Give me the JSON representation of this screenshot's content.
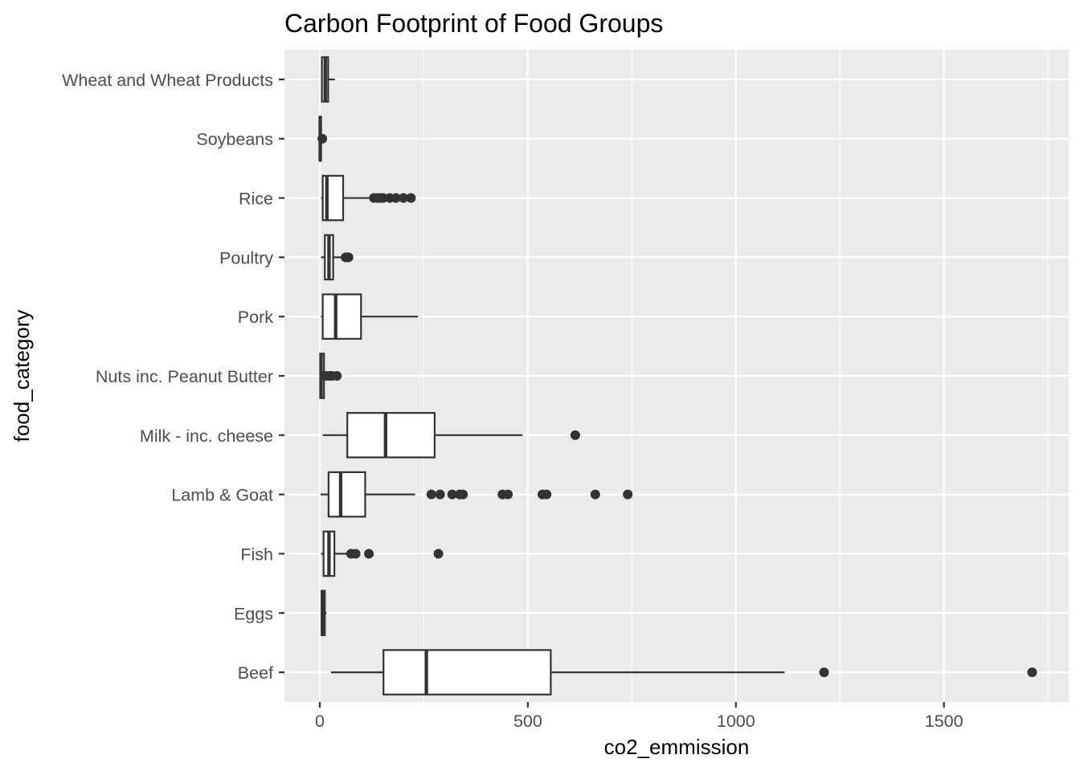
{
  "chart_data": {
    "type": "boxplot",
    "title": "Carbon Footprint of Food Groups",
    "xlabel": "co2_emmission",
    "ylabel": "food_category",
    "orientation": "horizontal",
    "xlim": [
      -85,
      1800
    ],
    "x_ticks": [
      0,
      500,
      1000,
      1500
    ],
    "x_tick_labels": [
      "0",
      "500",
      "1000",
      "1500"
    ],
    "grid": true,
    "categories": [
      "Wheat and Wheat Products",
      "Soybeans",
      "Rice",
      "Poultry",
      "Pork",
      "Nuts inc. Peanut Butter",
      "Milk - inc. cheese",
      "Lamb & Goat",
      "Fish",
      "Eggs",
      "Beef"
    ],
    "boxes": [
      {
        "category": "Wheat and Wheat Products",
        "whisker_low": 3,
        "q1": 5,
        "median": 13,
        "q3": 20,
        "whisker_high": 36,
        "outliers": []
      },
      {
        "category": "Soybeans",
        "whisker_low": 0,
        "q1": 0,
        "median": 1,
        "q3": 2,
        "whisker_high": 3,
        "outliers": [
          6
        ]
      },
      {
        "category": "Rice",
        "whisker_low": 3,
        "q1": 7,
        "median": 17,
        "q3": 56,
        "whisker_high": 119,
        "outliers": [
          130,
          138,
          146,
          152,
          168,
          183,
          201,
          219
        ]
      },
      {
        "category": "Poultry",
        "whisker_low": 3,
        "q1": 12,
        "median": 22,
        "q3": 32,
        "whisker_high": 60,
        "outliers": [
          62,
          66,
          69
        ]
      },
      {
        "category": "Pork",
        "whisker_low": 3,
        "q1": 7,
        "median": 38,
        "q3": 99,
        "whisker_high": 236,
        "outliers": []
      },
      {
        "category": "Nuts inc. Peanut Butter",
        "whisker_low": 0,
        "q1": 1,
        "median": 3,
        "q3": 10,
        "whisker_high": 12,
        "outliers": [
          14,
          24,
          29,
          41
        ]
      },
      {
        "category": "Milk - inc. cheese",
        "whisker_low": 7,
        "q1": 66,
        "median": 158,
        "q3": 276,
        "whisker_high": 487,
        "outliers": [
          614
        ]
      },
      {
        "category": "Lamb & Goat",
        "whisker_low": 2,
        "q1": 21,
        "median": 50,
        "q3": 109,
        "whisker_high": 229,
        "outliers": [
          268,
          289,
          318,
          336,
          344,
          439,
          452,
          535,
          545,
          662,
          740
        ]
      },
      {
        "category": "Fish",
        "whisker_low": 3,
        "q1": 9,
        "median": 22,
        "q3": 35,
        "whisker_high": 65,
        "outliers": [
          75,
          86,
          118,
          285
        ]
      },
      {
        "category": "Eggs",
        "whisker_low": 3,
        "q1": 4,
        "median": 8,
        "q3": 12,
        "whisker_high": 16,
        "outliers": []
      },
      {
        "category": "Beef",
        "whisker_low": 27,
        "q1": 153,
        "median": 256,
        "q3": 555,
        "whisker_high": 1117,
        "outliers": [
          1212,
          1712
        ]
      }
    ],
    "colors": {
      "panel_background": "#ebebeb",
      "grid": "#ffffff",
      "box_fill": "#ffffff",
      "box_stroke": "#333333",
      "point": "#333333",
      "tick_text": "#4d4d4d",
      "title_text": "#000000"
    }
  }
}
